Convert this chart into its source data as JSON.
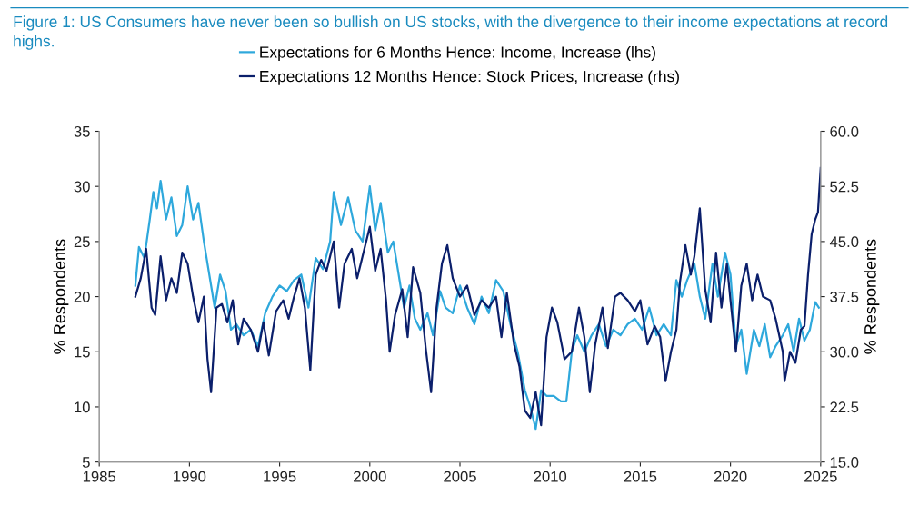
{
  "chart_data": {
    "type": "line",
    "title": "Figure 1: US Consumers have never been so bullish on US stocks, with the divergence to their income expectations at record highs.",
    "ylabel": "% Respondents",
    "y2label": "% Respondents",
    "xlim": [
      1985,
      2025
    ],
    "xticks": [
      1985,
      1990,
      1995,
      2000,
      2005,
      2010,
      2015,
      2020,
      2025
    ],
    "ylim": [
      5,
      35
    ],
    "yticks": [
      5,
      10,
      15,
      20,
      25,
      30,
      35
    ],
    "y2lim": [
      15,
      60
    ],
    "y2ticks": [
      {
        "value": 15,
        "label": "15.0"
      },
      {
        "value": 22.5,
        "label": "22.5"
      },
      {
        "value": 30,
        "label": "30.0"
      },
      {
        "value": 37.5,
        "label": "37.5"
      },
      {
        "value": 45,
        "label": "45.0"
      },
      {
        "value": 52.5,
        "label": "52.5"
      },
      {
        "value": 60,
        "label": "60.0"
      }
    ],
    "legend": "top",
    "grid": false,
    "marker": "none",
    "line_style": "solid",
    "series": [
      {
        "name": "Expectations for 6 Months Hence: Income, Increase (lhs)",
        "color": "#2ea8dc",
        "axis": "y",
        "x": [
          1987.0,
          1987.2,
          1987.5,
          1987.8,
          1988.0,
          1988.2,
          1988.4,
          1988.7,
          1989.0,
          1989.3,
          1989.6,
          1989.9,
          1990.2,
          1990.5,
          1990.8,
          1991.1,
          1991.4,
          1991.7,
          1992.0,
          1992.3,
          1992.6,
          1993.0,
          1993.4,
          1993.8,
          1994.2,
          1994.6,
          1995.0,
          1995.4,
          1995.8,
          1996.2,
          1996.6,
          1997.0,
          1997.4,
          1997.8,
          1998.0,
          1998.4,
          1998.8,
          1999.2,
          1999.6,
          2000.0,
          2000.3,
          2000.6,
          2001.0,
          2001.3,
          2001.6,
          2001.9,
          2002.2,
          2002.5,
          2002.8,
          2003.2,
          2003.5,
          2003.9,
          2004.2,
          2004.6,
          2005.0,
          2005.4,
          2005.8,
          2006.2,
          2006.6,
          2007.0,
          2007.4,
          2007.8,
          2008.2,
          2008.6,
          2008.9,
          2009.2,
          2009.5,
          2009.8,
          2010.2,
          2010.6,
          2010.9,
          2011.2,
          2011.5,
          2011.9,
          2012.3,
          2012.7,
          2013.1,
          2013.5,
          2013.9,
          2014.3,
          2014.7,
          2015.1,
          2015.5,
          2015.9,
          2016.3,
          2016.7,
          2017.0,
          2017.3,
          2017.6,
          2018.0,
          2018.3,
          2018.6,
          2019.0,
          2019.3,
          2019.7,
          2020.0,
          2020.3,
          2020.6,
          2020.9,
          2021.3,
          2021.6,
          2021.9,
          2022.2,
          2022.5,
          2022.9,
          2023.2,
          2023.5,
          2023.8,
          2024.1,
          2024.4,
          2024.7,
          2024.9
        ],
        "values": [
          21,
          24.5,
          23.5,
          27,
          29.5,
          28,
          30.5,
          27,
          29,
          25.5,
          26.5,
          30,
          27,
          28.5,
          25,
          22,
          19,
          22,
          20.5,
          17,
          17.5,
          16.5,
          17,
          15.5,
          18.5,
          20,
          21,
          20.5,
          21.5,
          22,
          19,
          23.5,
          22.5,
          25,
          29.5,
          26.5,
          29,
          26,
          25,
          30,
          26,
          28.5,
          24,
          25,
          22,
          19,
          21,
          18,
          17,
          18.5,
          16.5,
          20.5,
          19,
          18.5,
          21,
          19,
          17.5,
          20,
          18.5,
          21.5,
          20.5,
          17.5,
          15,
          11.5,
          10,
          8,
          11.5,
          11,
          11,
          10.5,
          10.5,
          15,
          16.5,
          15,
          16.5,
          17.5,
          15.5,
          17,
          16.5,
          17.5,
          18,
          17,
          19,
          16.5,
          17.5,
          16.5,
          21.5,
          20,
          21.5,
          23,
          20,
          18,
          23,
          20,
          24,
          22,
          15.5,
          17,
          13,
          17,
          15.5,
          17.5,
          14.5,
          15.5,
          16.5,
          17.5,
          15,
          18,
          16,
          17,
          19.5,
          19
        ]
      },
      {
        "name": "Expectations 12 Months Hence: Stock Prices, Increase (rhs)",
        "color": "#0b1f6b",
        "axis": "y2",
        "x": [
          1987.0,
          1987.3,
          1987.6,
          1987.9,
          1988.1,
          1988.4,
          1988.7,
          1989.0,
          1989.3,
          1989.6,
          1989.9,
          1990.2,
          1990.5,
          1990.8,
          1991.0,
          1991.2,
          1991.5,
          1991.8,
          1992.1,
          1992.4,
          1992.7,
          1993.0,
          1993.4,
          1993.8,
          1994.1,
          1994.4,
          1994.8,
          1995.2,
          1995.5,
          1995.8,
          1996.1,
          1996.4,
          1996.7,
          1997.0,
          1997.3,
          1997.6,
          1998.0,
          1998.3,
          1998.6,
          1999.0,
          1999.3,
          1999.6,
          2000.0,
          2000.3,
          2000.6,
          2000.9,
          2001.1,
          2001.4,
          2001.8,
          2002.1,
          2002.4,
          2002.8,
          2003.1,
          2003.4,
          2003.7,
          2004.0,
          2004.3,
          2004.6,
          2005.0,
          2005.4,
          2005.8,
          2006.2,
          2006.6,
          2007.0,
          2007.3,
          2007.6,
          2008.0,
          2008.3,
          2008.6,
          2008.9,
          2009.2,
          2009.5,
          2009.8,
          2010.1,
          2010.4,
          2010.8,
          2011.2,
          2011.6,
          2011.9,
          2012.2,
          2012.5,
          2012.9,
          2013.2,
          2013.6,
          2013.9,
          2014.3,
          2014.7,
          2015.0,
          2015.4,
          2015.8,
          2016.1,
          2016.4,
          2016.7,
          2017.0,
          2017.2,
          2017.5,
          2017.8,
          2018.0,
          2018.3,
          2018.6,
          2018.9,
          2019.2,
          2019.5,
          2019.8,
          2020.0,
          2020.3,
          2020.6,
          2020.9,
          2021.2,
          2021.5,
          2021.8,
          2022.2,
          2022.5,
          2022.9,
          2023.0,
          2023.3,
          2023.6,
          2023.9,
          2024.1,
          2024.3,
          2024.5,
          2024.7,
          2024.85,
          2025.0
        ],
        "values": [
          37.5,
          40,
          44,
          36,
          35,
          43,
          37,
          40,
          38,
          43.5,
          42,
          37.5,
          34,
          37.5,
          29,
          24.5,
          36,
          36.5,
          34,
          37,
          31,
          34.5,
          33,
          30,
          34,
          29.5,
          35.5,
          37,
          34.5,
          37.5,
          40,
          36,
          27.5,
          40.5,
          42.5,
          41,
          45,
          36,
          42,
          44,
          40,
          43,
          47,
          41,
          44,
          37,
          30,
          35,
          38.5,
          32,
          41.5,
          38,
          30.5,
          24.5,
          36,
          42,
          44.5,
          40,
          37.5,
          39,
          35,
          37,
          36,
          37.5,
          32,
          38,
          31,
          28,
          22,
          21,
          24.5,
          20,
          32,
          36,
          34,
          29,
          30,
          36,
          32,
          24.5,
          31,
          36,
          30.5,
          37.5,
          38,
          37,
          35.5,
          37,
          31,
          33.5,
          32,
          26,
          30,
          33,
          39.5,
          44.5,
          40.5,
          43,
          49.5,
          38.5,
          34,
          43.5,
          36,
          42,
          37,
          30,
          39,
          42,
          37,
          40.5,
          37.5,
          37,
          34.5,
          30,
          26,
          30,
          28.5,
          33,
          33.5,
          40.5,
          46,
          48,
          49,
          55
        ]
      }
    ]
  }
}
